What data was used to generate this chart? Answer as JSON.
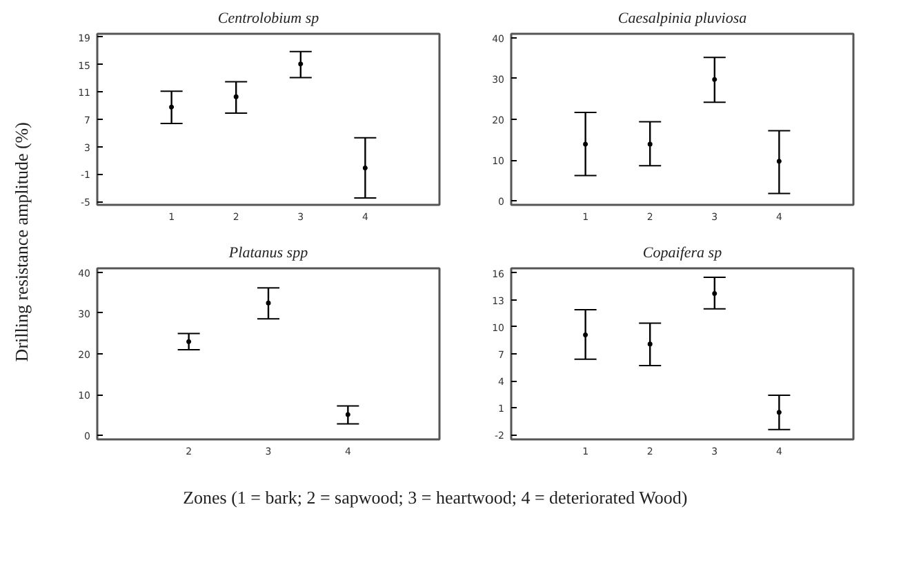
{
  "chart_data": [
    {
      "type": "scatter",
      "title": "Centrolobium sp",
      "ylabel": "Drilling  resistance  amplitude  (%)",
      "x": [
        1,
        2,
        3,
        4
      ],
      "values": [
        8.8,
        10.3,
        15.1,
        -0.1
      ],
      "errors": [
        [
          6.4,
          11.1
        ],
        [
          7.9,
          12.5
        ],
        [
          13.1,
          16.9
        ],
        [
          -4.5,
          4.3
        ]
      ],
      "color": "#000000",
      "marker": "circle",
      "xlim": [
        -0.15,
        5.15
      ],
      "xticks": [
        1,
        2,
        3,
        4
      ],
      "ylim": [
        -5.5,
        19.5
      ],
      "yticks": [
        -5,
        -1,
        3,
        7,
        11,
        15,
        19
      ],
      "grid": false
    },
    {
      "type": "scatter",
      "title": "Caesalpinia pluviosa",
      "x": [
        1,
        2,
        3,
        4
      ],
      "values": [
        13.9,
        13.9,
        29.8,
        9.7
      ],
      "errors": [
        [
          6.2,
          21.7
        ],
        [
          8.6,
          19.4
        ],
        [
          24.2,
          35.2
        ],
        [
          1.8,
          17.2
        ]
      ],
      "color": "#000000",
      "marker": "circle",
      "xlim": [
        -0.15,
        5.15
      ],
      "xticks": [
        1,
        2,
        3,
        4
      ],
      "ylim": [
        -1,
        41
      ],
      "yticks": [
        0,
        10,
        20,
        30,
        40
      ],
      "grid": false
    },
    {
      "type": "scatter",
      "title": "Platanus spp",
      "x": [
        2,
        3,
        4
      ],
      "values": [
        23.0,
        32.5,
        5.1
      ],
      "errors": [
        [
          21.0,
          25.0
        ],
        [
          28.6,
          36.2
        ],
        [
          2.8,
          7.2
        ]
      ],
      "color": "#000000",
      "marker": "circle",
      "xlim": [
        0.85,
        5.15
      ],
      "xticks": [
        2,
        3,
        4
      ],
      "ylim": [
        -1,
        41
      ],
      "yticks": [
        0,
        10,
        20,
        30,
        40
      ],
      "grid": false
    },
    {
      "type": "scatter",
      "title": "Copaifera sp",
      "xlabel": "Zones (1 = bark; 2 = sapwood; 3 = heartwood; 4 = deteriorated Wood)",
      "x": [
        1,
        2,
        3,
        4
      ],
      "values": [
        9.1,
        8.1,
        13.7,
        0.5
      ],
      "errors": [
        [
          6.4,
          11.9
        ],
        [
          5.7,
          10.4
        ],
        [
          12.0,
          15.5
        ],
        [
          -1.4,
          2.4
        ]
      ],
      "color": "#000000",
      "marker": "circle",
      "xlim": [
        -0.15,
        5.15
      ],
      "xticks": [
        1,
        2,
        3,
        4
      ],
      "ylim": [
        -2.5,
        16.5
      ],
      "yticks": [
        -2,
        1,
        4,
        7,
        10,
        13,
        16
      ],
      "grid": false
    }
  ]
}
